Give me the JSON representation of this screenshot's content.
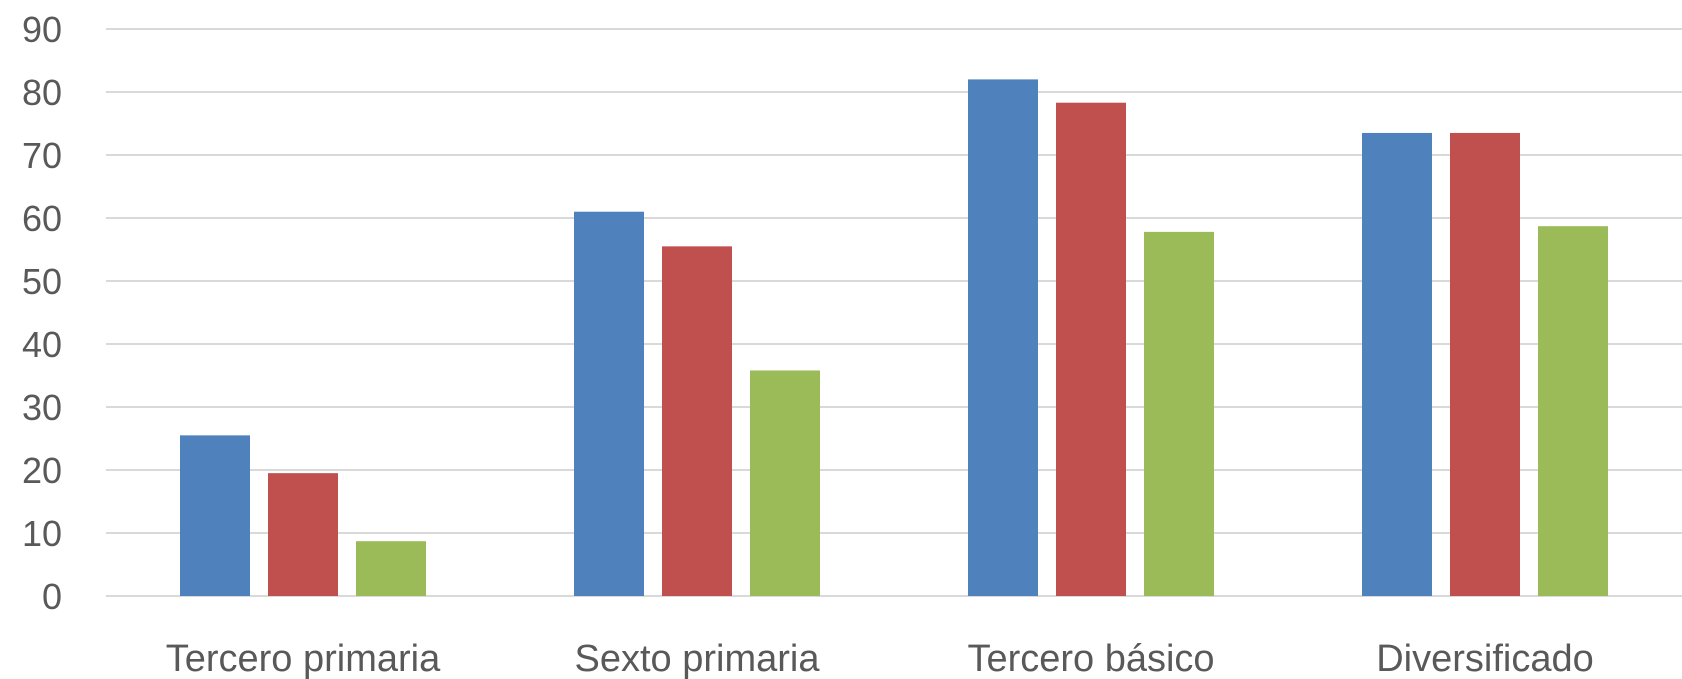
{
  "chart_data": {
    "type": "bar",
    "title": "",
    "xlabel": "",
    "ylabel": "",
    "categories": [
      "Tercero primaria",
      "Sexto primaria",
      "Tercero básico",
      "Diversificado"
    ],
    "series": [
      {
        "color": "#4f81bd",
        "values": [
          25.5,
          61,
          82,
          73.5
        ]
      },
      {
        "color": "#c0504d",
        "values": [
          19.5,
          55.5,
          78.3,
          73.5
        ]
      },
      {
        "color": "#9bbb59",
        "values": [
          8.7,
          35.8,
          57.8,
          58.7
        ]
      }
    ],
    "ylim": [
      0,
      90
    ],
    "yticks": [
      0,
      10,
      20,
      30,
      40,
      50,
      60,
      70,
      80,
      90
    ],
    "grid": true,
    "legend": "none"
  }
}
